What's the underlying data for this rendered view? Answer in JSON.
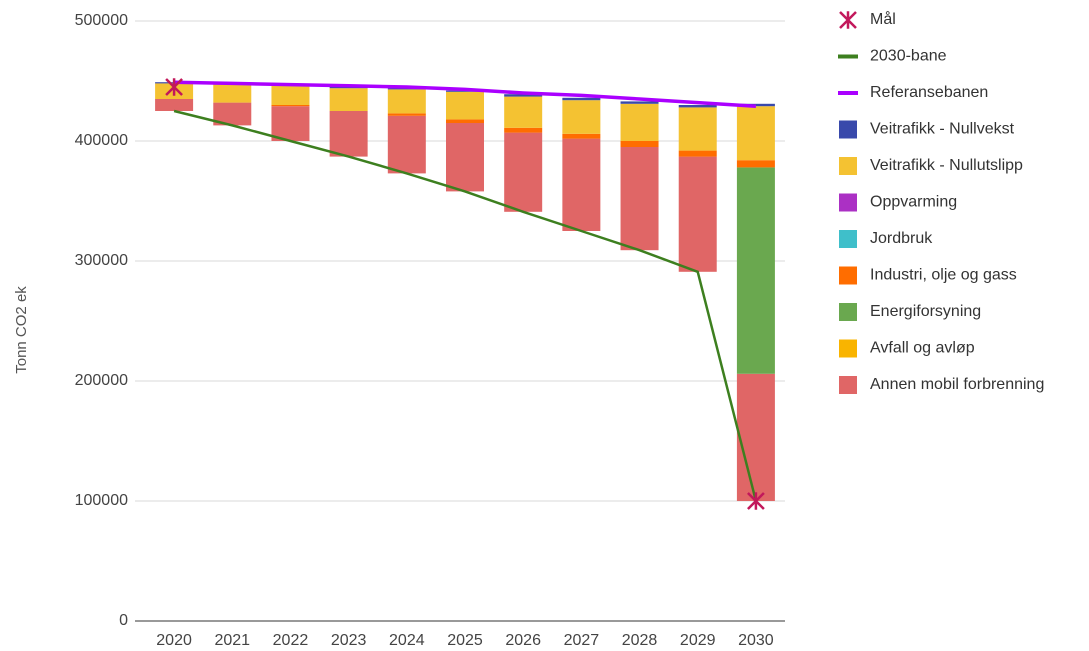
{
  "chart_data": {
    "type": "bar",
    "y_label": "Tonn CO2 ek",
    "categories": [
      "2020",
      "2021",
      "2022",
      "2023",
      "2024",
      "2025",
      "2026",
      "2027",
      "2028",
      "2029",
      "2030"
    ],
    "ylim": [
      0,
      500000
    ],
    "yticks": [
      0,
      100000,
      200000,
      300000,
      400000,
      500000
    ],
    "grid": true,
    "legend": "right",
    "series": [
      {
        "name": "Mål",
        "type": "marker",
        "color": "#c2185b",
        "values": [
          445000,
          null,
          null,
          null,
          null,
          null,
          null,
          null,
          null,
          null,
          100000
        ]
      },
      {
        "name": "2030-bane",
        "type": "line",
        "color": "#3d7f1f",
        "values": [
          425000,
          413000,
          400000,
          387000,
          373000,
          358000,
          341000,
          325000,
          309000,
          291000,
          100000
        ]
      },
      {
        "name": "Referansebanen",
        "type": "line",
        "color": "#aa00ff",
        "values": [
          449000,
          448000,
          447000,
          446000,
          445000,
          443000,
          440000,
          438000,
          435000,
          432000,
          429000
        ]
      },
      {
        "name": "Veitrafikk - Nullvekst",
        "type": "bar",
        "color": "#3949ab",
        "values": [
          1000,
          1000,
          1000,
          1000,
          1000,
          1000,
          2000,
          2000,
          2000,
          2000,
          2000
        ]
      },
      {
        "name": "Veitrafikk - Nullutslipp",
        "type": "bar",
        "color": "#f4c232",
        "values": [
          13000,
          15000,
          16000,
          19000,
          20000,
          23000,
          26000,
          28000,
          31000,
          36000,
          45000
        ]
      },
      {
        "name": "Oppvarming",
        "type": "bar",
        "color": "#ab30c4",
        "values": [
          0,
          0,
          0,
          0,
          0,
          0,
          0,
          0,
          0,
          0,
          0
        ]
      },
      {
        "name": "Jordbruk",
        "type": "bar",
        "color": "#3fbfca",
        "values": [
          0,
          0,
          0,
          0,
          0,
          0,
          0,
          0,
          0,
          0,
          0
        ]
      },
      {
        "name": "Industri, olje og gass",
        "type": "bar",
        "color": "#ff6d00",
        "values": [
          0,
          0,
          1000,
          0,
          2000,
          3000,
          4000,
          4000,
          5000,
          5000,
          6000
        ]
      },
      {
        "name": "Energiforsyning",
        "type": "bar",
        "color": "#6aa84f",
        "values": [
          0,
          0,
          0,
          0,
          0,
          0,
          0,
          0,
          0,
          0,
          172000
        ]
      },
      {
        "name": "Avfall og avløp",
        "type": "bar",
        "color": "#f9b400",
        "values": [
          0,
          0,
          0,
          0,
          0,
          0,
          0,
          0,
          0,
          0,
          0
        ]
      },
      {
        "name": "Annen mobil forbrenning",
        "type": "bar",
        "color": "#e06666",
        "values": [
          10000,
          19000,
          29000,
          38000,
          48000,
          57000,
          66000,
          77000,
          86000,
          96000,
          106000
        ]
      }
    ]
  }
}
